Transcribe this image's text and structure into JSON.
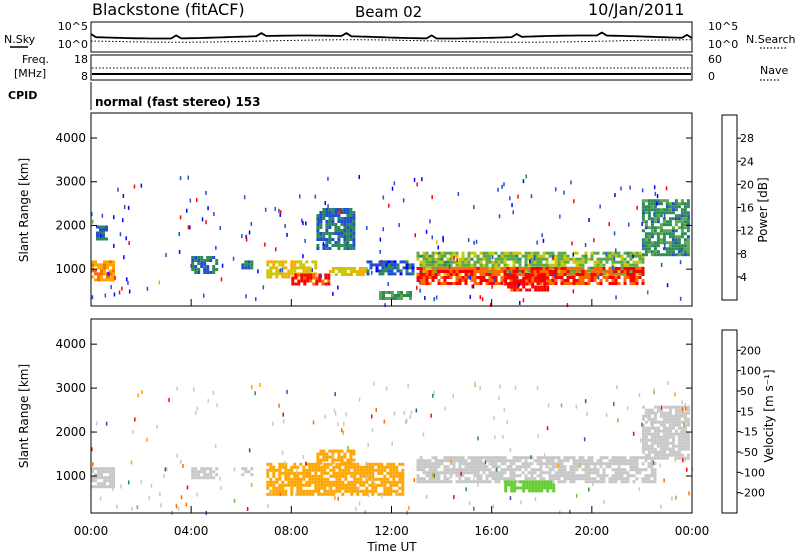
{
  "header": {
    "station": "Blackstone (fitACF)",
    "beam": "Beam 02",
    "date": "10/Jan/2011"
  },
  "summary": {
    "nsky_label": "N.Sky",
    "nsky_ticks": [
      "10^5",
      "10^0"
    ],
    "nsearch_label": "N.Search",
    "freq_label_1": "Freq.",
    "freq_label_2": "[MHz]",
    "freq_ticks": [
      "18",
      "8"
    ],
    "nave_label": "Nave",
    "nave_ticks": [
      "60",
      "0"
    ],
    "cpid_label": "CPID",
    "cpid_text": "normal (fast stereo) 153"
  },
  "power_panel": {
    "ylabel": "Slant Range [km]",
    "yticks": [
      "4000",
      "3000",
      "2000",
      "1000"
    ],
    "colorbar_label": "Power [dB]",
    "colorbar_ticks": [
      "28",
      "24",
      "20",
      "16",
      "12",
      "8",
      "4"
    ],
    "colorbar_colors": [
      "#0000ff",
      "#2050d0",
      "#2e8b57",
      "#5fa84a",
      "#c8c800",
      "#ffa500",
      "#ff6a00",
      "#ff0000"
    ]
  },
  "velocity_panel": {
    "ylabel": "Slant Range [km]",
    "yticks": [
      "4000",
      "3000",
      "2000",
      "1000"
    ],
    "colorbar_label": "Velocity [m s⁻¹]",
    "colorbar_ticks": [
      "200",
      "100",
      "50",
      "15",
      "-15",
      "-50",
      "-100",
      "-200"
    ],
    "colorbar_colors": [
      "#0000c8",
      "#3050a0",
      "#2e8b57",
      "#66cc33",
      "#c8c8c8",
      "#ffa500",
      "#ff6a00",
      "#ff0000"
    ]
  },
  "xaxis": {
    "ticks": [
      "00:00",
      "04:00",
      "08:00",
      "12:00",
      "16:00",
      "20:00",
      "00:00"
    ],
    "xlabel": "Time UT"
  },
  "chart_data": {
    "type": "heatmap",
    "title": "Blackstone (fitACF) Beam 02 10/Jan/2011",
    "xlabel": "Time UT",
    "ylabel": "Slant Range [km]",
    "xlim_hours": [
      0,
      24
    ],
    "ylim_km": [
      180,
      4550
    ],
    "power_scale_db": [
      0,
      30
    ],
    "velocity_scale_ms": [
      -250,
      250
    ],
    "power_regions": [
      {
        "t0": 0.0,
        "t1": 0.9,
        "r0": 750,
        "r1": 1200,
        "value": 22
      },
      {
        "t0": 0.2,
        "t1": 0.6,
        "r0": 1700,
        "r1": 2000,
        "value": 8
      },
      {
        "t0": 4.0,
        "t1": 5.0,
        "r0": 950,
        "r1": 1300,
        "value": 8
      },
      {
        "t0": 6.0,
        "t1": 6.4,
        "r0": 1000,
        "r1": 1200,
        "value": 6
      },
      {
        "t0": 7.0,
        "t1": 9.0,
        "r0": 800,
        "r1": 1200,
        "value": 18
      },
      {
        "t0": 8.0,
        "t1": 9.5,
        "r0": 650,
        "r1": 900,
        "value": 27
      },
      {
        "t0": 9.5,
        "t1": 11.0,
        "r0": 850,
        "r1": 1050,
        "value": 18
      },
      {
        "t0": 9.0,
        "t1": 10.5,
        "r0": 1500,
        "r1": 2400,
        "value": 8
      },
      {
        "t0": 11.0,
        "t1": 12.8,
        "r0": 900,
        "r1": 1200,
        "value": 6
      },
      {
        "t0": 11.5,
        "t1": 12.8,
        "r0": 300,
        "r1": 500,
        "value": 12
      },
      {
        "t0": 13.0,
        "t1": 22.0,
        "r0": 900,
        "r1": 1400,
        "value": 14
      },
      {
        "t0": 13.0,
        "t1": 22.0,
        "r0": 700,
        "r1": 1050,
        "value": 26
      },
      {
        "t0": 16.5,
        "t1": 18.2,
        "r0": 550,
        "r1": 900,
        "value": 28
      },
      {
        "t0": 22.0,
        "t1": 23.8,
        "r0": 1300,
        "r1": 2600,
        "value": 10
      }
    ],
    "velocity_regions": [
      {
        "t0": 0.0,
        "t1": 0.9,
        "r0": 750,
        "r1": 1200,
        "value": 0
      },
      {
        "t0": 4.0,
        "t1": 5.0,
        "r0": 950,
        "r1": 1200,
        "value": 0
      },
      {
        "t0": 6.0,
        "t1": 6.4,
        "r0": 1000,
        "r1": 1200,
        "value": 0
      },
      {
        "t0": 7.0,
        "t1": 12.5,
        "r0": 600,
        "r1": 1300,
        "value": -40
      },
      {
        "t0": 9.0,
        "t1": 10.5,
        "r0": 1300,
        "r1": 1600,
        "value": -40
      },
      {
        "t0": 13.0,
        "t1": 22.5,
        "r0": 900,
        "r1": 1450,
        "value": 0
      },
      {
        "t0": 16.5,
        "t1": 18.5,
        "r0": 650,
        "r1": 900,
        "value": 30
      },
      {
        "t0": 22.0,
        "t1": 23.8,
        "r0": 1400,
        "r1": 2600,
        "value": 0
      }
    ]
  }
}
